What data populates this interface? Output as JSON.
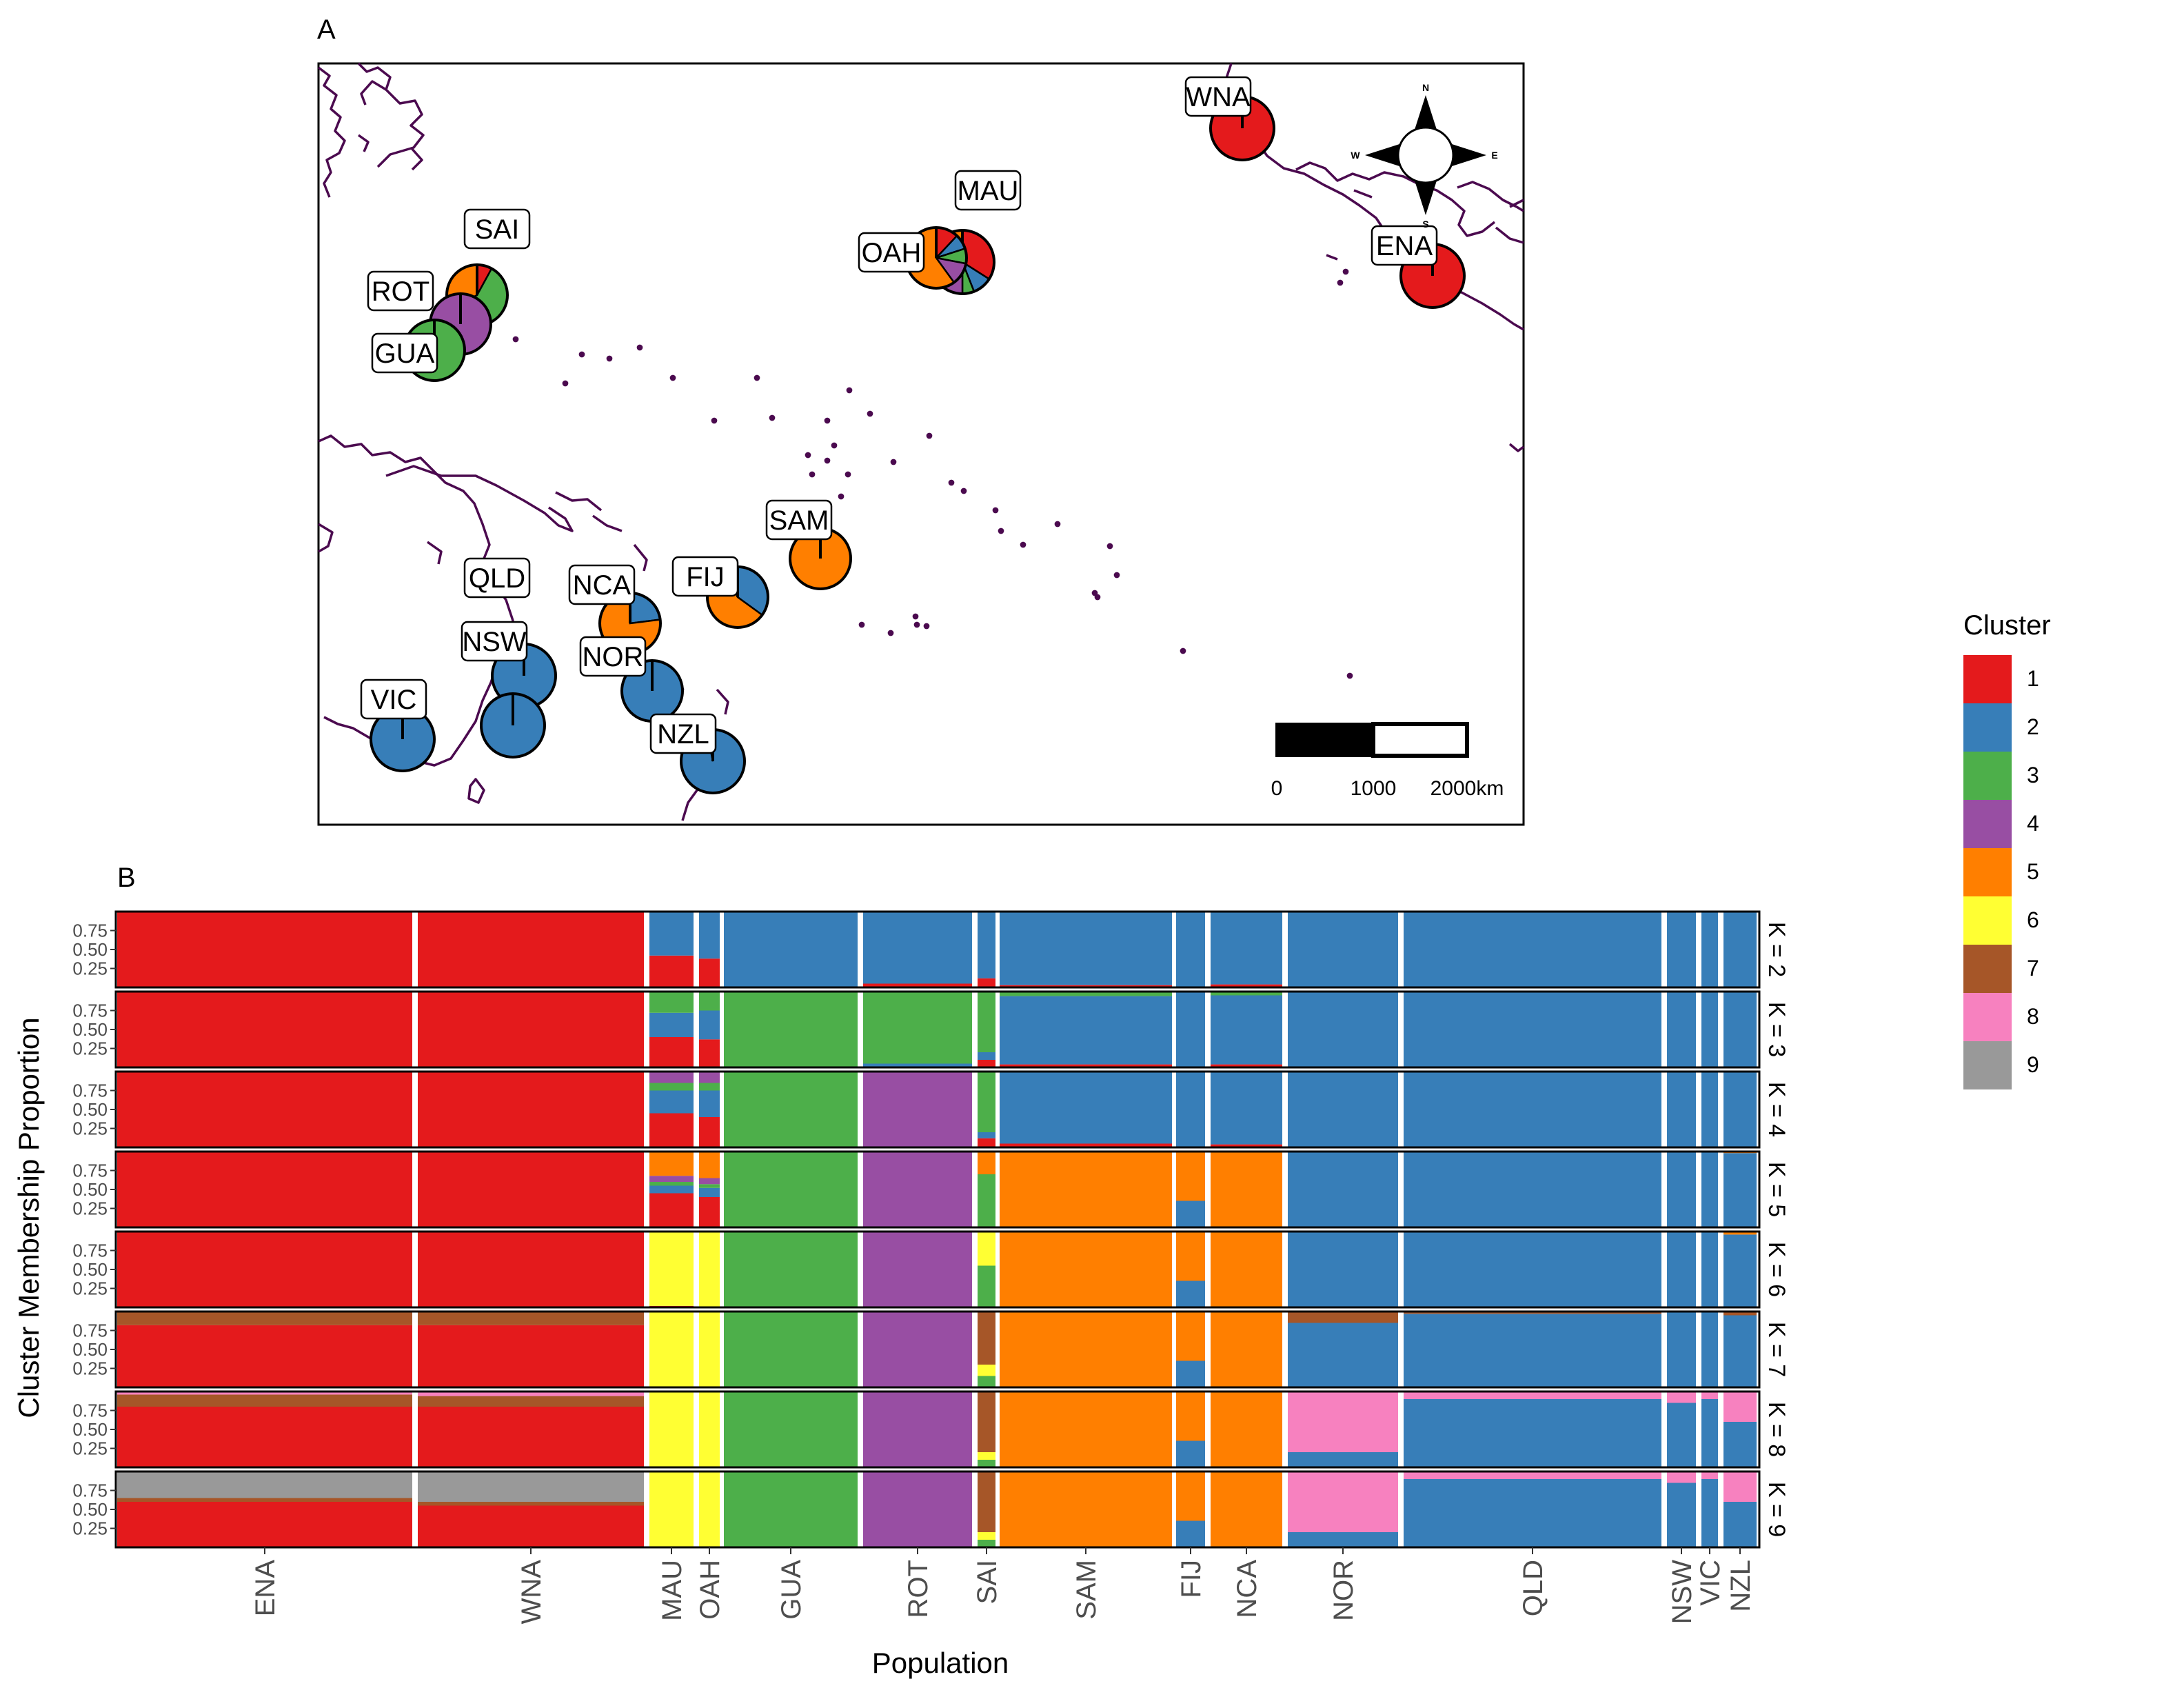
{
  "colors": {
    "cluster": {
      "1": "#E41A1C",
      "2": "#377EB8",
      "3": "#4DAF4A",
      "4": "#984EA3",
      "5": "#FF7F00",
      "6": "#FFFF33",
      "7": "#A65628",
      "8": "#F781BF",
      "9": "#999999"
    },
    "coast": "#4B0A4F",
    "panel_bg": "#FFFFFF",
    "sep": "#FFFFFF"
  },
  "chart_data": [
    {
      "type": "pie",
      "panel_label": "A",
      "scale_bar": {
        "ticks": [
          "0",
          "1000",
          "2000km"
        ]
      },
      "compass": {
        "n": "N",
        "s": "S",
        "e": "E",
        "w": "W"
      },
      "populations": [
        {
          "label": "WNA",
          "props": {
            "1": 1.0
          }
        },
        {
          "label": "ENA",
          "props": {
            "1": 1.0
          }
        },
        {
          "label": "MAU",
          "props": {
            "1": 0.34,
            "2": 0.1,
            "3": 0.06,
            "4": 0.1,
            "5": 0.4
          }
        },
        {
          "label": "OAH",
          "props": {
            "1": 0.12,
            "2": 0.08,
            "3": 0.08,
            "4": 0.12,
            "5": 0.6
          }
        },
        {
          "label": "SAI",
          "props": {
            "1": 0.08,
            "3": 0.6,
            "5": 0.32
          }
        },
        {
          "label": "ROT",
          "props": {
            "4": 1.0
          }
        },
        {
          "label": "GUA",
          "props": {
            "3": 1.0
          }
        },
        {
          "label": "SAM",
          "props": {
            "5": 1.0
          }
        },
        {
          "label": "FIJ",
          "props": {
            "2": 0.35,
            "5": 0.65
          }
        },
        {
          "label": "NCA",
          "props": {
            "2": 0.23,
            "5": 0.77
          }
        },
        {
          "label": "QLD",
          "props": {
            "2": 1.0
          }
        },
        {
          "label": "NSW",
          "props": {
            "2": 1.0
          }
        },
        {
          "label": "NOR",
          "props": {
            "2": 1.0
          }
        },
        {
          "label": "VIC",
          "props": {
            "2": 1.0
          }
        },
        {
          "label": "NZL",
          "props": {
            "2": 0.97,
            "8": 0.03
          }
        }
      ]
    },
    {
      "type": "bar",
      "stacked": true,
      "panel_label": "B",
      "xlabel": "Population",
      "ylabel": "Cluster Membership Proportion",
      "ylim": [
        0,
        1
      ],
      "yticks": [
        "0.25",
        "0.50",
        "0.75"
      ],
      "categories": [
        "ENA",
        "WNA",
        "MAU",
        "OAH",
        "GUA",
        "ROT",
        "SAI",
        "SAM",
        "FIJ",
        "NCA",
        "NOR",
        "QLD",
        "NSW",
        "VIC",
        "NZL"
      ],
      "facets": [
        {
          "label": "K = 2",
          "composition": {
            "ENA": {
              "1": 0.99,
              "2": 0.01
            },
            "WNA": {
              "1": 1.0
            },
            "MAU": {
              "1": 0.42,
              "2": 0.58
            },
            "OAH": {
              "1": 0.38,
              "2": 0.62
            },
            "GUA": {
              "2": 1.0
            },
            "ROT": {
              "1": 0.05,
              "2": 0.95
            },
            "SAI": {
              "1": 0.12,
              "2": 0.88
            },
            "SAM": {
              "1": 0.03,
              "2": 0.97
            },
            "FIJ": {
              "2": 1.0
            },
            "NCA": {
              "1": 0.04,
              "2": 0.96
            },
            "NOR": {
              "2": 1.0
            },
            "QLD": {
              "2": 1.0
            },
            "NSW": {
              "2": 1.0
            },
            "VIC": {
              "2": 1.0
            },
            "NZL": {
              "2": 1.0
            }
          }
        },
        {
          "label": "K = 3",
          "composition": {
            "ENA": {
              "1": 0.99,
              "2": 0.01
            },
            "WNA": {
              "1": 1.0
            },
            "MAU": {
              "1": 0.4,
              "2": 0.32,
              "3": 0.28
            },
            "OAH": {
              "1": 0.37,
              "2": 0.38,
              "3": 0.25
            },
            "GUA": {
              "3": 1.0
            },
            "ROT": {
              "2": 0.05,
              "3": 0.95
            },
            "SAI": {
              "1": 0.1,
              "2": 0.1,
              "3": 0.8
            },
            "SAM": {
              "1": 0.04,
              "2": 0.9,
              "3": 0.06
            },
            "FIJ": {
              "2": 1.0
            },
            "NCA": {
              "1": 0.04,
              "2": 0.91,
              "3": 0.05
            },
            "NOR": {
              "2": 1.0
            },
            "QLD": {
              "2": 1.0
            },
            "NSW": {
              "2": 1.0
            },
            "VIC": {
              "2": 1.0
            },
            "NZL": {
              "2": 1.0
            }
          }
        },
        {
          "label": "K = 4",
          "composition": {
            "ENA": {
              "1": 0.99,
              "2": 0.01
            },
            "WNA": {
              "1": 1.0
            },
            "MAU": {
              "1": 0.45,
              "2": 0.3,
              "3": 0.1,
              "4": 0.15
            },
            "OAH": {
              "1": 0.4,
              "2": 0.35,
              "3": 0.1,
              "4": 0.15
            },
            "GUA": {
              "3": 1.0
            },
            "ROT": {
              "4": 1.0
            },
            "SAI": {
              "1": 0.12,
              "2": 0.08,
              "3": 0.8
            },
            "SAM": {
              "1": 0.05,
              "2": 0.95
            },
            "FIJ": {
              "2": 1.0
            },
            "NCA": {
              "1": 0.04,
              "2": 0.96
            },
            "NOR": {
              "2": 1.0
            },
            "QLD": {
              "2": 1.0
            },
            "NSW": {
              "2": 1.0
            },
            "VIC": {
              "2": 1.0
            },
            "NZL": {
              "2": 1.0
            }
          }
        },
        {
          "label": "K = 5",
          "composition": {
            "ENA": {
              "1": 1.0
            },
            "WNA": {
              "1": 1.0
            },
            "MAU": {
              "1": 0.45,
              "2": 0.1,
              "3": 0.05,
              "4": 0.08,
              "5": 0.32
            },
            "OAH": {
              "1": 0.4,
              "2": 0.12,
              "3": 0.05,
              "4": 0.08,
              "5": 0.35
            },
            "GUA": {
              "3": 1.0
            },
            "ROT": {
              "4": 1.0
            },
            "SAI": {
              "3": 0.7,
              "5": 0.3
            },
            "SAM": {
              "5": 1.0
            },
            "FIJ": {
              "2": 0.35,
              "5": 0.65
            },
            "NCA": {
              "5": 1.0
            },
            "NOR": {
              "2": 1.0
            },
            "QLD": {
              "2": 1.0
            },
            "NSW": {
              "2": 1.0
            },
            "VIC": {
              "2": 1.0
            },
            "NZL": {
              "2": 0.98,
              "5": 0.02
            }
          }
        },
        {
          "label": "K = 6",
          "composition": {
            "ENA": {
              "1": 1.0
            },
            "WNA": {
              "1": 1.0
            },
            "MAU": {
              "1": 0.02,
              "6": 0.98
            },
            "OAH": {
              "6": 1.0
            },
            "GUA": {
              "3": 1.0
            },
            "ROT": {
              "4": 1.0
            },
            "SAI": {
              "3": 0.55,
              "6": 0.45
            },
            "SAM": {
              "5": 1.0
            },
            "FIJ": {
              "2": 0.35,
              "5": 0.65
            },
            "NCA": {
              "5": 1.0
            },
            "NOR": {
              "2": 1.0
            },
            "QLD": {
              "2": 1.0
            },
            "NSW": {
              "2": 1.0
            },
            "VIC": {
              "2": 1.0
            },
            "NZL": {
              "2": 0.96,
              "5": 0.04
            }
          }
        },
        {
          "label": "K = 7",
          "composition": {
            "ENA": {
              "1": 0.82,
              "7": 0.18
            },
            "WNA": {
              "1": 0.82,
              "7": 0.18
            },
            "MAU": {
              "6": 1.0
            },
            "OAH": {
              "6": 1.0
            },
            "GUA": {
              "3": 1.0
            },
            "ROT": {
              "4": 1.0
            },
            "SAI": {
              "3": 0.15,
              "6": 0.15,
              "7": 0.7
            },
            "SAM": {
              "5": 1.0
            },
            "FIJ": {
              "2": 0.35,
              "5": 0.65
            },
            "NCA": {
              "5": 1.0
            },
            "NOR": {
              "2": 0.85,
              "7": 0.15
            },
            "QLD": {
              "2": 0.97,
              "7": 0.03
            },
            "NSW": {
              "2": 1.0
            },
            "VIC": {
              "2": 1.0
            },
            "NZL": {
              "2": 0.95,
              "7": 0.05
            }
          }
        },
        {
          "label": "K = 8",
          "composition": {
            "ENA": {
              "1": 0.8,
              "7": 0.16,
              "8": 0.04
            },
            "WNA": {
              "1": 0.8,
              "7": 0.14,
              "8": 0.06
            },
            "MAU": {
              "6": 1.0
            },
            "OAH": {
              "6": 1.0
            },
            "GUA": {
              "3": 1.0
            },
            "ROT": {
              "4": 1.0
            },
            "SAI": {
              "3": 0.1,
              "6": 0.1,
              "7": 0.8
            },
            "SAM": {
              "5": 1.0
            },
            "FIJ": {
              "2": 0.35,
              "5": 0.65
            },
            "NCA": {
              "5": 1.0
            },
            "NOR": {
              "2": 0.2,
              "8": 0.8
            },
            "QLD": {
              "2": 0.9,
              "8": 0.1
            },
            "NSW": {
              "2": 0.85,
              "8": 0.15
            },
            "VIC": {
              "2": 0.9,
              "8": 0.1
            },
            "NZL": {
              "2": 0.6,
              "8": 0.4
            }
          }
        },
        {
          "label": "K = 9",
          "composition": {
            "ENA": {
              "1": 0.6,
              "7": 0.05,
              "9": 0.35
            },
            "WNA": {
              "1": 0.55,
              "7": 0.05,
              "9": 0.4
            },
            "MAU": {
              "6": 1.0
            },
            "OAH": {
              "6": 1.0
            },
            "GUA": {
              "3": 1.0
            },
            "ROT": {
              "4": 1.0
            },
            "SAI": {
              "3": 0.1,
              "6": 0.1,
              "7": 0.8
            },
            "SAM": {
              "5": 1.0
            },
            "FIJ": {
              "2": 0.35,
              "5": 0.65
            },
            "NCA": {
              "5": 1.0
            },
            "NOR": {
              "2": 0.2,
              "8": 0.8
            },
            "QLD": {
              "2": 0.9,
              "8": 0.1
            },
            "NSW": {
              "2": 0.85,
              "8": 0.15
            },
            "VIC": {
              "2": 0.9,
              "8": 0.1
            },
            "NZL": {
              "2": 0.6,
              "8": 0.4
            }
          }
        }
      ]
    }
  ],
  "legend": {
    "title": "Cluster",
    "items": [
      {
        "label": "1",
        "color": "#E41A1C"
      },
      {
        "label": "2",
        "color": "#377EB8"
      },
      {
        "label": "3",
        "color": "#4DAF4A"
      },
      {
        "label": "4",
        "color": "#984EA3"
      },
      {
        "label": "5",
        "color": "#FF7F00"
      },
      {
        "label": "6",
        "color": "#FFFF33"
      },
      {
        "label": "7",
        "color": "#A65628"
      },
      {
        "label": "8",
        "color": "#F781BF"
      },
      {
        "label": "9",
        "color": "#999999"
      }
    ]
  }
}
